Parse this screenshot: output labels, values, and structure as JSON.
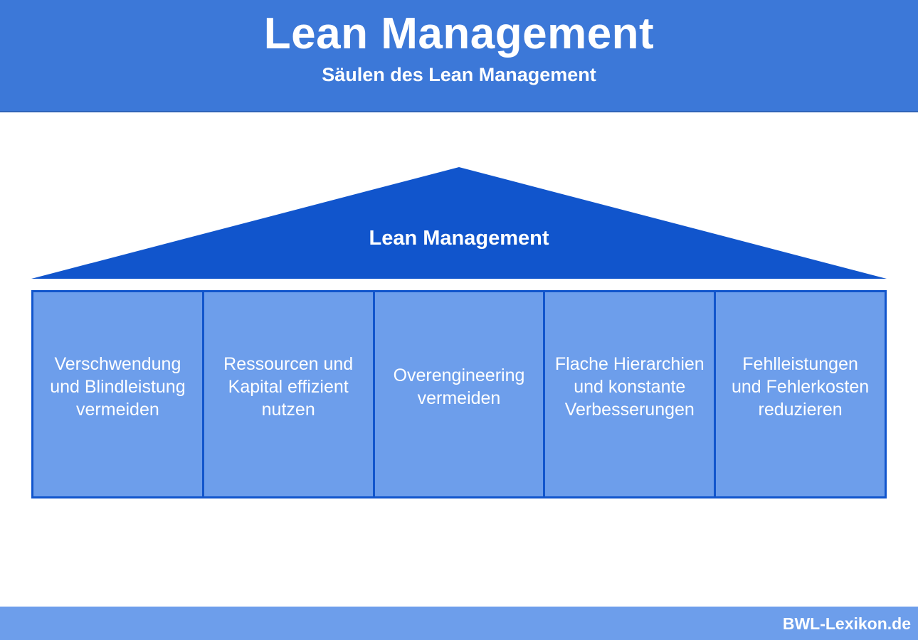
{
  "header": {
    "title": "Lean Management",
    "subtitle": "Säulen des Lean Management"
  },
  "roof": {
    "label": "Lean Management"
  },
  "pillars": [
    {
      "text": "Verschwendung\nund Blindleistung\nvermeiden"
    },
    {
      "text": "Ressourcen und\nKapital effizient\nnutzen"
    },
    {
      "text": "Overengineering\nvermeiden"
    },
    {
      "text": "Flache Hierarchien\nund konstante\nVerbesserungen"
    },
    {
      "text": "Fehlleistungen\nund Fehlerkosten\nreduzieren"
    }
  ],
  "footer": {
    "brand": "BWL-Lexikon.de"
  },
  "colors": {
    "header_bg": "#3c78d8",
    "roof_fill": "#1155cc",
    "pillar_fill": "#6d9eeb",
    "pillar_border": "#1155cc",
    "footer_bg": "#6d9eeb",
    "text": "#ffffff"
  }
}
